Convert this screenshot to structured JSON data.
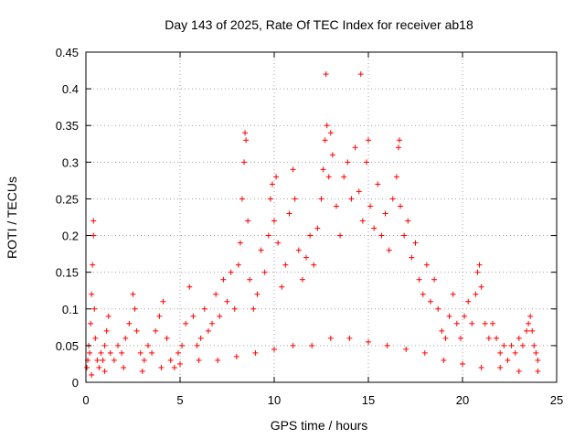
{
  "chart_data": {
    "type": "scatter",
    "title": "Day 143 of 2025, Rate Of TEC Index for receiver ab18",
    "xlabel": "GPS time / hours",
    "ylabel": "ROTI / TECUs",
    "xlim": [
      0,
      25
    ],
    "ylim": [
      0,
      0.45
    ],
    "xticks": [
      0,
      5,
      10,
      15,
      20,
      25
    ],
    "xtick_labels": [
      "0",
      "5",
      "10",
      "15",
      "20",
      "25"
    ],
    "yticks": [
      0,
      0.05,
      0.1,
      0.15,
      0.2,
      0.25,
      0.3,
      0.35,
      0.4,
      0.45
    ],
    "ytick_labels": [
      "0",
      "0.05",
      "0.1",
      "0.15",
      "0.2",
      "0.25",
      "0.3",
      "0.35",
      "0.4",
      "0.45"
    ],
    "grid": true,
    "marker": "+",
    "marker_color": "#ff0000",
    "series": [
      {
        "points": [
          [
            0.05,
            0.02
          ],
          [
            0.1,
            0.03
          ],
          [
            0.15,
            0.05
          ],
          [
            0.2,
            0.04
          ],
          [
            0.25,
            0.08
          ],
          [
            0.3,
            0.12
          ],
          [
            0.35,
            0.16
          ],
          [
            0.4,
            0.2
          ],
          [
            0.4,
            0.22
          ],
          [
            0.45,
            0.1
          ],
          [
            0.5,
            0.06
          ],
          [
            0.6,
            0.03
          ],
          [
            0.7,
            0.02
          ],
          [
            0.8,
            0.04
          ],
          [
            0.9,
            0.03
          ],
          [
            1.0,
            0.05
          ],
          [
            1.1,
            0.07
          ],
          [
            1.2,
            0.09
          ],
          [
            1.3,
            0.04
          ],
          [
            1.5,
            0.03
          ],
          [
            1.7,
            0.05
          ],
          [
            1.9,
            0.04
          ],
          [
            2.1,
            0.06
          ],
          [
            2.3,
            0.08
          ],
          [
            2.5,
            0.12
          ],
          [
            2.6,
            0.1
          ],
          [
            2.7,
            0.07
          ],
          [
            2.9,
            0.04
          ],
          [
            3.1,
            0.03
          ],
          [
            3.3,
            0.05
          ],
          [
            3.5,
            0.04
          ],
          [
            3.7,
            0.07
          ],
          [
            3.9,
            0.09
          ],
          [
            4.1,
            0.11
          ],
          [
            4.3,
            0.06
          ],
          [
            4.5,
            0.03
          ],
          [
            4.7,
            0.02
          ],
          [
            4.9,
            0.04
          ],
          [
            5.1,
            0.05
          ],
          [
            5.3,
            0.08
          ],
          [
            5.5,
            0.13
          ],
          [
            5.7,
            0.09
          ],
          [
            5.9,
            0.05
          ],
          [
            6.1,
            0.06
          ],
          [
            6.3,
            0.1
          ],
          [
            6.5,
            0.07
          ],
          [
            6.7,
            0.08
          ],
          [
            6.9,
            0.12
          ],
          [
            7.1,
            0.09
          ],
          [
            7.3,
            0.14
          ],
          [
            7.5,
            0.11
          ],
          [
            7.7,
            0.15
          ],
          [
            7.9,
            0.1
          ],
          [
            8.1,
            0.16
          ],
          [
            8.2,
            0.19
          ],
          [
            8.3,
            0.25
          ],
          [
            8.4,
            0.3
          ],
          [
            8.45,
            0.34
          ],
          [
            8.5,
            0.33
          ],
          [
            8.6,
            0.22
          ],
          [
            8.7,
            0.14
          ],
          [
            8.9,
            0.1
          ],
          [
            9.1,
            0.12
          ],
          [
            9.3,
            0.18
          ],
          [
            9.5,
            0.15
          ],
          [
            9.7,
            0.2
          ],
          [
            9.8,
            0.25
          ],
          [
            9.9,
            0.27
          ],
          [
            10.0,
            0.22
          ],
          [
            10.1,
            0.28
          ],
          [
            10.2,
            0.19
          ],
          [
            10.4,
            0.13
          ],
          [
            10.6,
            0.16
          ],
          [
            10.8,
            0.23
          ],
          [
            11.0,
            0.29
          ],
          [
            11.1,
            0.25
          ],
          [
            11.3,
            0.18
          ],
          [
            11.5,
            0.14
          ],
          [
            11.7,
            0.17
          ],
          [
            11.9,
            0.2
          ],
          [
            12.1,
            0.16
          ],
          [
            12.3,
            0.21
          ],
          [
            12.5,
            0.25
          ],
          [
            12.6,
            0.29
          ],
          [
            12.7,
            0.33
          ],
          [
            12.75,
            0.42
          ],
          [
            12.8,
            0.35
          ],
          [
            12.9,
            0.28
          ],
          [
            13.0,
            0.34
          ],
          [
            13.1,
            0.31
          ],
          [
            13.3,
            0.24
          ],
          [
            13.5,
            0.2
          ],
          [
            13.7,
            0.28
          ],
          [
            13.9,
            0.3
          ],
          [
            14.1,
            0.25
          ],
          [
            14.3,
            0.32
          ],
          [
            14.5,
            0.26
          ],
          [
            14.6,
            0.42
          ],
          [
            14.7,
            0.22
          ],
          [
            14.9,
            0.3
          ],
          [
            15.0,
            0.33
          ],
          [
            15.1,
            0.24
          ],
          [
            15.3,
            0.21
          ],
          [
            15.5,
            0.27
          ],
          [
            15.7,
            0.2
          ],
          [
            15.9,
            0.23
          ],
          [
            16.1,
            0.18
          ],
          [
            16.3,
            0.25
          ],
          [
            16.5,
            0.28
          ],
          [
            16.6,
            0.32
          ],
          [
            16.65,
            0.33
          ],
          [
            16.7,
            0.24
          ],
          [
            16.9,
            0.2
          ],
          [
            17.1,
            0.22
          ],
          [
            17.3,
            0.17
          ],
          [
            17.5,
            0.19
          ],
          [
            17.7,
            0.14
          ],
          [
            17.9,
            0.12
          ],
          [
            18.1,
            0.16
          ],
          [
            18.3,
            0.11
          ],
          [
            18.5,
            0.14
          ],
          [
            18.7,
            0.1
          ],
          [
            18.9,
            0.07
          ],
          [
            19.1,
            0.06
          ],
          [
            19.3,
            0.09
          ],
          [
            19.5,
            0.12
          ],
          [
            19.7,
            0.08
          ],
          [
            19.9,
            0.06
          ],
          [
            20.1,
            0.09
          ],
          [
            20.3,
            0.11
          ],
          [
            20.5,
            0.08
          ],
          [
            20.7,
            0.12
          ],
          [
            20.8,
            0.15
          ],
          [
            20.9,
            0.16
          ],
          [
            21.0,
            0.13
          ],
          [
            21.2,
            0.08
          ],
          [
            21.4,
            0.06
          ],
          [
            21.6,
            0.08
          ],
          [
            21.8,
            0.06
          ],
          [
            22.0,
            0.04
          ],
          [
            22.2,
            0.05
          ],
          [
            22.4,
            0.03
          ],
          [
            22.6,
            0.05
          ],
          [
            22.8,
            0.04
          ],
          [
            23.0,
            0.06
          ],
          [
            23.2,
            0.05
          ],
          [
            23.4,
            0.07
          ],
          [
            23.5,
            0.08
          ],
          [
            23.6,
            0.09
          ],
          [
            23.7,
            0.07
          ],
          [
            23.8,
            0.05
          ],
          [
            23.9,
            0.04
          ],
          [
            24.0,
            0.03
          ],
          [
            0.3,
            0.01
          ],
          [
            1.0,
            0.015
          ],
          [
            2.0,
            0.02
          ],
          [
            3.0,
            0.015
          ],
          [
            4.0,
            0.02
          ],
          [
            5.0,
            0.025
          ],
          [
            6.0,
            0.03
          ],
          [
            7.0,
            0.03
          ],
          [
            8.0,
            0.035
          ],
          [
            9.0,
            0.04
          ],
          [
            10.0,
            0.045
          ],
          [
            11.0,
            0.05
          ],
          [
            12.0,
            0.05
          ],
          [
            13.0,
            0.06
          ],
          [
            14.0,
            0.06
          ],
          [
            15.0,
            0.055
          ],
          [
            16.0,
            0.05
          ],
          [
            17.0,
            0.045
          ],
          [
            18.0,
            0.04
          ],
          [
            19.0,
            0.03
          ],
          [
            20.0,
            0.025
          ],
          [
            21.0,
            0.02
          ],
          [
            22.0,
            0.02
          ],
          [
            23.0,
            0.015
          ],
          [
            24.0,
            0.015
          ]
        ]
      }
    ]
  }
}
